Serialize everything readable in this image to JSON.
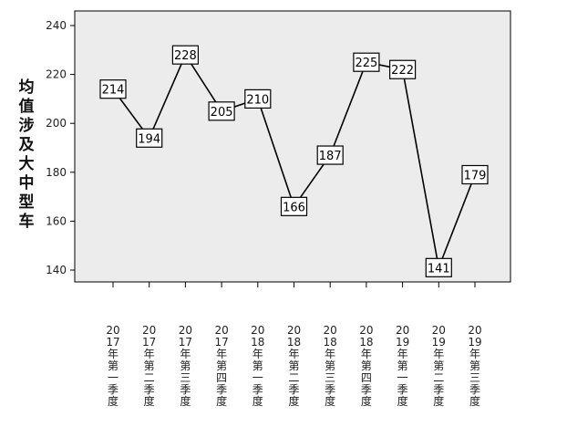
{
  "chart_data": {
    "type": "line",
    "title": "",
    "xlabel": "",
    "ylabel": "均值涉及大中型车",
    "ylim": [
      135,
      245
    ],
    "yticks": [
      140,
      160,
      180,
      200,
      220,
      240
    ],
    "grid": false,
    "legend": "none",
    "colors": {
      "plot_bg": "#ececec",
      "line": "#000000",
      "label_bg": "#ffffff"
    },
    "categories": [
      "2017年第一季度",
      "2017年第二季度",
      "2017年第三季度",
      "2017年第四季度",
      "2018年第一季度",
      "2018年第二季度",
      "2018年第三季度",
      "2018年第四季度",
      "2019年第一季度",
      "2019年第二季度",
      "2019年第三季度"
    ],
    "series": [
      {
        "values": [
          214,
          194,
          228,
          205,
          210,
          166,
          187,
          225,
          222,
          141,
          179
        ]
      }
    ]
  }
}
